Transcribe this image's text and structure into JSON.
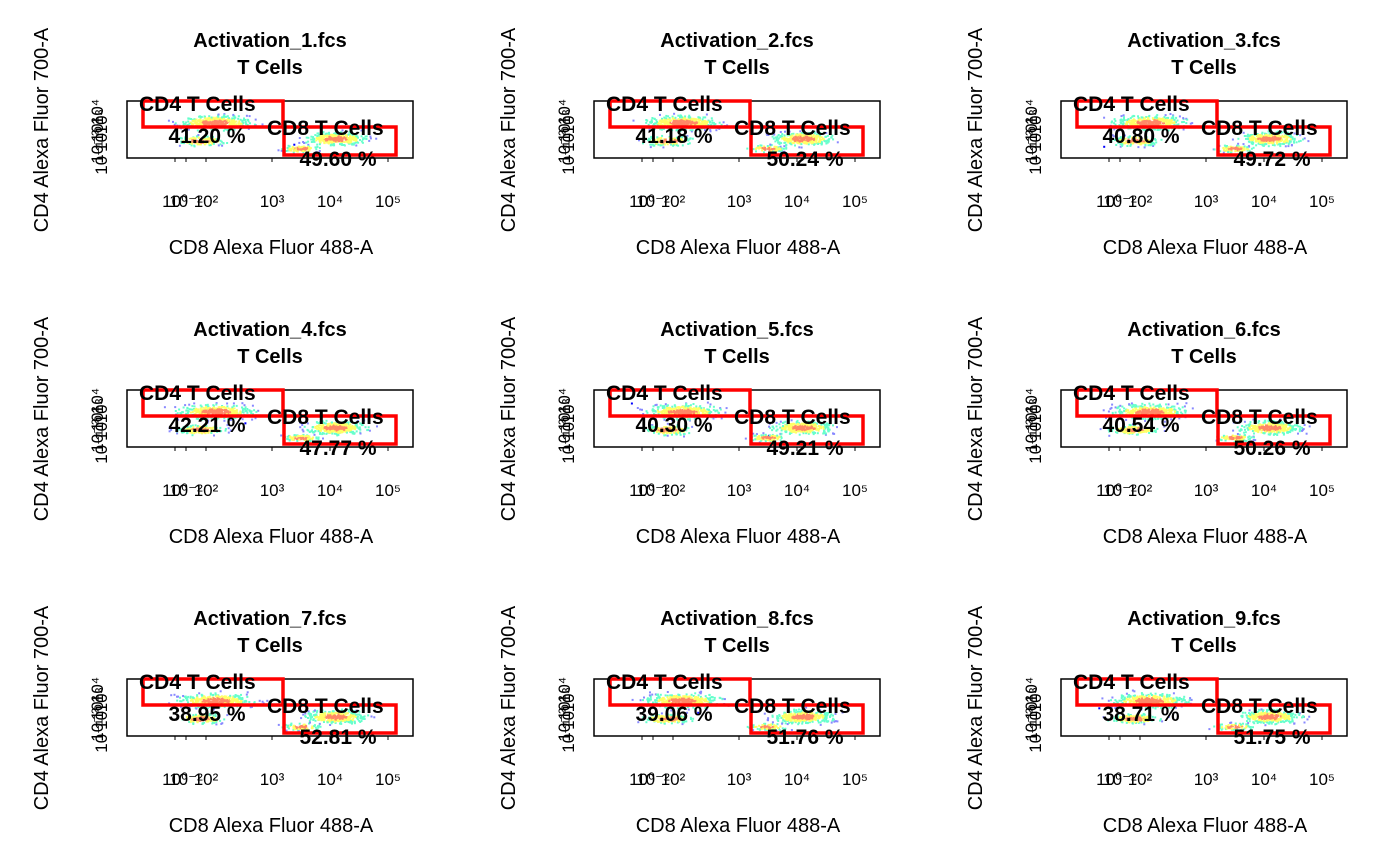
{
  "chart_data": [
    {
      "type": "scatter",
      "title": "Activation_1.fcs",
      "subtitle": "T Cells",
      "xlabel": "CD8 Alexa Fluor 488-A",
      "ylabel": "CD4 Alexa Fluor 700-A",
      "x_scale": "log",
      "xlim": [
        1e-05,
        1000000
      ],
      "x_ticks": [
        "10⁰",
        "10⁻²",
        "10²",
        "10³",
        "10⁴",
        "10⁵"
      ],
      "y_ticks": [
        "10⁴",
        "10³",
        "10²",
        "10⁰",
        "10⁻²",
        "10⁻¹"
      ],
      "gates": [
        {
          "name": "CD4 T Cells",
          "percent": "41.20 %"
        },
        {
          "name": "CD8 T Cells",
          "percent": "49.60 %"
        }
      ],
      "colors": {
        "gate": "#ff0000",
        "density": [
          "#0000ff",
          "#8888ff",
          "#66ffcc",
          "#ffff66",
          "#ff8866"
        ]
      }
    },
    {
      "type": "scatter",
      "title": "Activation_2.fcs",
      "subtitle": "T Cells",
      "xlabel": "CD8 Alexa Fluor 488-A",
      "ylabel": "CD4 Alexa Fluor 700-A",
      "x_scale": "log",
      "xlim": [
        1e-05,
        1000000
      ],
      "x_ticks": [
        "10⁰",
        "10⁻²",
        "10²",
        "10³",
        "10⁴",
        "10⁵"
      ],
      "y_ticks": [
        "10⁴",
        "10³",
        "10²",
        "10⁰",
        "10⁻²",
        "10⁻¹"
      ],
      "gates": [
        {
          "name": "CD4 T Cells",
          "percent": "41.18 %"
        },
        {
          "name": "CD8 T Cells",
          "percent": "50.24 %"
        }
      ],
      "colors": {
        "gate": "#ff0000",
        "density": [
          "#0000ff",
          "#8888ff",
          "#66ffcc",
          "#ffff66",
          "#ff8866"
        ]
      }
    },
    {
      "type": "scatter",
      "title": "Activation_3.fcs",
      "subtitle": "T Cells",
      "xlabel": "CD8 Alexa Fluor 488-A",
      "ylabel": "CD4 Alexa Fluor 700-A",
      "x_scale": "log",
      "xlim": [
        1e-05,
        1000000
      ],
      "x_ticks": [
        "10⁰",
        "10⁻²",
        "10²",
        "10³",
        "10⁴",
        "10⁵"
      ],
      "y_ticks": [
        "10⁴",
        "10³",
        "10²",
        "10⁰",
        "10⁻²",
        "10⁻¹"
      ],
      "gates": [
        {
          "name": "CD4 T Cells",
          "percent": "40.80 %"
        },
        {
          "name": "CD8 T Cells",
          "percent": "49.72 %"
        }
      ],
      "colors": {
        "gate": "#ff0000",
        "density": [
          "#0000ff",
          "#8888ff",
          "#66ffcc",
          "#ffff66",
          "#ff8866"
        ]
      }
    },
    {
      "type": "scatter",
      "title": "Activation_4.fcs",
      "subtitle": "T Cells",
      "xlabel": "CD8 Alexa Fluor 488-A",
      "ylabel": "CD4 Alexa Fluor 700-A",
      "x_scale": "log",
      "xlim": [
        1e-05,
        1000000
      ],
      "x_ticks": [
        "10⁰",
        "10⁻²",
        "10²",
        "10³",
        "10⁴",
        "10⁵"
      ],
      "y_ticks": [
        "10⁴",
        "10³",
        "10²",
        "10⁰",
        "10⁻²",
        "10⁻¹"
      ],
      "gates": [
        {
          "name": "CD4 T Cells",
          "percent": "42.21 %"
        },
        {
          "name": "CD8 T Cells",
          "percent": "47.77 %"
        }
      ],
      "colors": {
        "gate": "#ff0000",
        "density": [
          "#0000ff",
          "#8888ff",
          "#66ffcc",
          "#ffff66",
          "#ff8866"
        ]
      }
    },
    {
      "type": "scatter",
      "title": "Activation_5.fcs",
      "subtitle": "T Cells",
      "xlabel": "CD8 Alexa Fluor 488-A",
      "ylabel": "CD4 Alexa Fluor 700-A",
      "x_scale": "log",
      "xlim": [
        1e-05,
        1000000
      ],
      "x_ticks": [
        "10⁰",
        "10⁻²",
        "10²",
        "10³",
        "10⁴",
        "10⁵"
      ],
      "y_ticks": [
        "10⁴",
        "10³",
        "10²",
        "10⁰",
        "10⁻²",
        "10⁻¹"
      ],
      "gates": [
        {
          "name": "CD4 T Cells",
          "percent": "40.30 %"
        },
        {
          "name": "CD8 T Cells",
          "percent": "49.21 %"
        }
      ],
      "colors": {
        "gate": "#ff0000",
        "density": [
          "#0000ff",
          "#8888ff",
          "#66ffcc",
          "#ffff66",
          "#ff8866"
        ]
      }
    },
    {
      "type": "scatter",
      "title": "Activation_6.fcs",
      "subtitle": "T Cells",
      "xlabel": "CD8 Alexa Fluor 488-A",
      "ylabel": "CD4 Alexa Fluor 700-A",
      "x_scale": "log",
      "xlim": [
        1e-05,
        1000000
      ],
      "x_ticks": [
        "10⁰",
        "10⁻²",
        "10²",
        "10³",
        "10⁴",
        "10⁵"
      ],
      "y_ticks": [
        "10⁴",
        "10³",
        "10²",
        "10⁰",
        "10⁻²",
        "10⁻¹"
      ],
      "gates": [
        {
          "name": "CD4 T Cells",
          "percent": "40.54 %"
        },
        {
          "name": "CD8 T Cells",
          "percent": "50.26 %"
        }
      ],
      "colors": {
        "gate": "#ff0000",
        "density": [
          "#0000ff",
          "#8888ff",
          "#66ffcc",
          "#ffff66",
          "#ff8866"
        ]
      }
    },
    {
      "type": "scatter",
      "title": "Activation_7.fcs",
      "subtitle": "T Cells",
      "xlabel": "CD8 Alexa Fluor 488-A",
      "ylabel": "CD4 Alexa Fluor 700-A",
      "x_scale": "log",
      "xlim": [
        1e-05,
        1000000
      ],
      "x_ticks": [
        "10⁰",
        "10⁻²",
        "10²",
        "10³",
        "10⁴",
        "10⁵"
      ],
      "y_ticks": [
        "10⁴",
        "10³",
        "10²",
        "10⁰",
        "10⁻²",
        "10⁻¹"
      ],
      "gates": [
        {
          "name": "CD4 T Cells",
          "percent": "38.95 %"
        },
        {
          "name": "CD8 T Cells",
          "percent": "52.81 %"
        }
      ],
      "colors": {
        "gate": "#ff0000",
        "density": [
          "#0000ff",
          "#8888ff",
          "#66ffcc",
          "#ffff66",
          "#ff8866"
        ]
      }
    },
    {
      "type": "scatter",
      "title": "Activation_8.fcs",
      "subtitle": "T Cells",
      "xlabel": "CD8 Alexa Fluor 488-A",
      "ylabel": "CD4 Alexa Fluor 700-A",
      "x_scale": "log",
      "xlim": [
        1e-05,
        1000000
      ],
      "x_ticks": [
        "10⁰",
        "10⁻²",
        "10²",
        "10³",
        "10⁴",
        "10⁵"
      ],
      "y_ticks": [
        "10⁴",
        "10³",
        "10²",
        "10⁰",
        "10⁻²",
        "10⁻¹"
      ],
      "gates": [
        {
          "name": "CD4 T Cells",
          "percent": "39.06 %"
        },
        {
          "name": "CD8 T Cells",
          "percent": "51.76 %"
        }
      ],
      "colors": {
        "gate": "#ff0000",
        "density": [
          "#0000ff",
          "#8888ff",
          "#66ffcc",
          "#ffff66",
          "#ff8866"
        ]
      }
    },
    {
      "type": "scatter",
      "title": "Activation_9.fcs",
      "subtitle": "T Cells",
      "xlabel": "CD8 Alexa Fluor 488-A",
      "ylabel": "CD4 Alexa Fluor 700-A",
      "x_scale": "log",
      "xlim": [
        1e-05,
        1000000
      ],
      "x_ticks": [
        "10⁰",
        "10⁻²",
        "10²",
        "10³",
        "10⁴",
        "10⁵"
      ],
      "y_ticks": [
        "10⁴",
        "10³",
        "10²",
        "10⁰",
        "10⁻²",
        "10⁻¹"
      ],
      "gates": [
        {
          "name": "CD4 T Cells",
          "percent": "38.71 %"
        },
        {
          "name": "CD8 T Cells",
          "percent": "51.75 %"
        }
      ],
      "colors": {
        "gate": "#ff0000",
        "density": [
          "#0000ff",
          "#8888ff",
          "#66ffcc",
          "#ffff66",
          "#ff8866"
        ]
      }
    }
  ]
}
